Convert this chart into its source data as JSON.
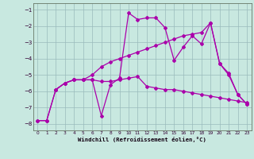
{
  "bg_color": "#c8e8e0",
  "grid_color": "#99bbbb",
  "line_color": "#aa00aa",
  "marker": "D",
  "marker_size": 2.0,
  "line_width": 0.9,
  "xlabel": "Windchill (Refroidissement éolien,°C)",
  "xlim": [
    -0.5,
    23.5
  ],
  "ylim": [
    -8.4,
    -0.6
  ],
  "xticks": [
    0,
    1,
    2,
    3,
    4,
    5,
    6,
    7,
    8,
    9,
    10,
    11,
    12,
    13,
    14,
    15,
    16,
    17,
    18,
    19,
    20,
    21,
    22,
    23
  ],
  "yticks": [
    -8,
    -7,
    -6,
    -5,
    -4,
    -3,
    -2,
    -1
  ],
  "series": [
    {
      "x": [
        0,
        1,
        2,
        3,
        4,
        5,
        6,
        7,
        8,
        9,
        10,
        11,
        12,
        13,
        14,
        15,
        16,
        17,
        18,
        19,
        20,
        21,
        22,
        23
      ],
      "y": [
        -7.8,
        -7.8,
        -5.9,
        -5.5,
        -5.3,
        -5.3,
        -5.3,
        -5.4,
        -5.4,
        -5.3,
        -5.2,
        -5.1,
        -5.7,
        -5.8,
        -5.9,
        -5.9,
        -6.0,
        -6.1,
        -6.2,
        -6.3,
        -6.4,
        -6.5,
        -6.6,
        -6.7
      ]
    },
    {
      "x": [
        0,
        1,
        2,
        3,
        4,
        5,
        6,
        7,
        8,
        9,
        10,
        11,
        12,
        13,
        14,
        15,
        16,
        17,
        18,
        19,
        20,
        21,
        22,
        23
      ],
      "y": [
        -7.8,
        -7.8,
        -5.9,
        -5.5,
        -5.3,
        -5.3,
        -5.3,
        -7.5,
        -5.6,
        -5.2,
        -1.2,
        -1.6,
        -1.5,
        -1.5,
        -2.1,
        -4.1,
        -3.3,
        -2.6,
        -3.1,
        -1.8,
        -4.3,
        -4.9,
        -6.2,
        -6.8
      ]
    },
    {
      "x": [
        2,
        3,
        4,
        5,
        6,
        7,
        8,
        9,
        10,
        11,
        12,
        13,
        14,
        15,
        16,
        17,
        18,
        19,
        20,
        21,
        22,
        23
      ],
      "y": [
        -5.9,
        -5.5,
        -5.3,
        -5.3,
        -5.0,
        -4.5,
        -4.2,
        -4.0,
        -3.8,
        -3.6,
        -3.4,
        -3.2,
        -3.0,
        -2.8,
        -2.6,
        -2.5,
        -2.4,
        -1.8,
        -4.3,
        -5.0,
        -6.2,
        -6.8
      ]
    }
  ]
}
